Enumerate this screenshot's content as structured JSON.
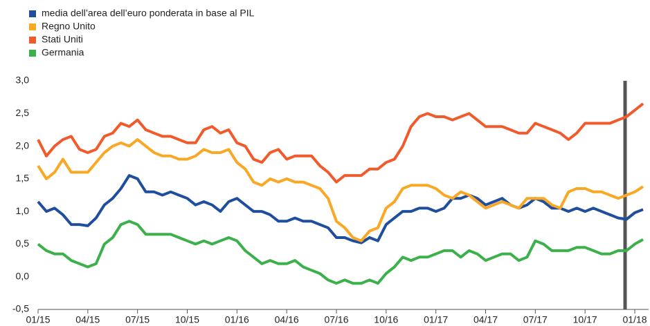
{
  "chart_data": {
    "type": "line",
    "categories": [
      "01/15",
      null,
      null,
      null,
      null,
      null,
      "04/15",
      null,
      null,
      null,
      null,
      null,
      "07/15",
      null,
      null,
      null,
      null,
      null,
      "10/15",
      null,
      null,
      null,
      null,
      null,
      "01/16",
      null,
      null,
      null,
      null,
      null,
      "04/16",
      null,
      null,
      null,
      null,
      null,
      "07/16",
      null,
      null,
      null,
      null,
      null,
      "10/16",
      null,
      null,
      null,
      null,
      null,
      "01/17",
      null,
      null,
      null,
      null,
      null,
      "04/17",
      null,
      null,
      null,
      null,
      null,
      "07/17",
      null,
      null,
      null,
      null,
      null,
      "10/17",
      null,
      null,
      null,
      null,
      null,
      "01/18",
      null
    ],
    "series": [
      {
        "name": "media dell’area dell’euro ponderata in base al PIL",
        "color": "#1f4e9c",
        "values": [
          1.15,
          1.0,
          1.05,
          0.95,
          0.8,
          0.8,
          0.78,
          0.9,
          1.1,
          1.2,
          1.35,
          1.55,
          1.5,
          1.3,
          1.3,
          1.25,
          1.3,
          1.25,
          1.2,
          1.1,
          1.15,
          1.1,
          1.0,
          1.15,
          1.2,
          1.1,
          1.0,
          1.0,
          0.95,
          0.85,
          0.85,
          0.9,
          0.85,
          0.85,
          0.8,
          0.75,
          0.6,
          0.6,
          0.55,
          0.52,
          0.6,
          0.55,
          0.8,
          0.9,
          1.0,
          1.0,
          1.05,
          1.05,
          1.0,
          1.05,
          1.2,
          1.2,
          1.25,
          1.2,
          1.1,
          1.15,
          1.2,
          1.1,
          1.05,
          1.1,
          1.2,
          1.15,
          1.05,
          1.05,
          1.0,
          1.05,
          1.0,
          1.05,
          1.0,
          0.95,
          0.9,
          0.88,
          0.98,
          1.03
        ]
      },
      {
        "name": "Regno Unito",
        "color": "#f9a825",
        "values": [
          1.7,
          1.5,
          1.6,
          1.8,
          1.6,
          1.6,
          1.6,
          1.75,
          1.9,
          2.0,
          2.05,
          2.0,
          2.1,
          2.0,
          1.9,
          1.85,
          1.85,
          1.8,
          1.8,
          1.85,
          1.95,
          1.9,
          1.9,
          1.95,
          1.75,
          1.65,
          1.45,
          1.4,
          1.5,
          1.45,
          1.5,
          1.45,
          1.45,
          1.4,
          1.35,
          1.2,
          0.85,
          0.75,
          0.6,
          0.55,
          0.7,
          0.75,
          1.05,
          1.15,
          1.35,
          1.4,
          1.4,
          1.4,
          1.35,
          1.25,
          1.2,
          1.3,
          1.25,
          1.15,
          1.05,
          1.1,
          1.15,
          1.1,
          1.05,
          1.2,
          1.2,
          1.2,
          1.1,
          1.05,
          1.3,
          1.35,
          1.35,
          1.3,
          1.3,
          1.25,
          1.2,
          1.25,
          1.3,
          1.38
        ]
      },
      {
        "name": "Stati Uniti",
        "color": "#f15a2b",
        "values": [
          2.1,
          1.85,
          2.0,
          2.1,
          2.15,
          1.95,
          1.9,
          1.95,
          2.15,
          2.2,
          2.35,
          2.3,
          2.4,
          2.25,
          2.2,
          2.15,
          2.15,
          2.1,
          2.05,
          2.05,
          2.25,
          2.3,
          2.2,
          2.25,
          2.05,
          2.0,
          1.8,
          1.75,
          1.9,
          1.95,
          1.8,
          1.85,
          1.85,
          1.85,
          1.7,
          1.6,
          1.45,
          1.55,
          1.55,
          1.55,
          1.65,
          1.65,
          1.75,
          1.8,
          2.0,
          2.3,
          2.45,
          2.5,
          2.45,
          2.45,
          2.4,
          2.45,
          2.5,
          2.4,
          2.3,
          2.3,
          2.3,
          2.25,
          2.2,
          2.2,
          2.35,
          2.3,
          2.25,
          2.2,
          2.1,
          2.2,
          2.35,
          2.35,
          2.35,
          2.35,
          2.4,
          2.45,
          2.55,
          2.65
        ]
      },
      {
        "name": "Germania",
        "color": "#3cb04a",
        "values": [
          0.5,
          0.4,
          0.35,
          0.35,
          0.25,
          0.2,
          0.15,
          0.2,
          0.5,
          0.6,
          0.8,
          0.85,
          0.8,
          0.65,
          0.65,
          0.65,
          0.65,
          0.6,
          0.55,
          0.5,
          0.55,
          0.5,
          0.55,
          0.6,
          0.55,
          0.4,
          0.3,
          0.2,
          0.25,
          0.2,
          0.2,
          0.25,
          0.15,
          0.1,
          0.05,
          -0.05,
          -0.1,
          -0.05,
          -0.1,
          -0.1,
          -0.05,
          -0.1,
          0.05,
          0.15,
          0.3,
          0.25,
          0.3,
          0.3,
          0.35,
          0.4,
          0.4,
          0.3,
          0.4,
          0.35,
          0.25,
          0.3,
          0.35,
          0.35,
          0.25,
          0.3,
          0.55,
          0.5,
          0.4,
          0.4,
          0.4,
          0.45,
          0.45,
          0.4,
          0.35,
          0.35,
          0.4,
          0.4,
          0.5,
          0.57
        ]
      }
    ],
    "ylim": [
      -0.5,
      3.0
    ],
    "yticks": [
      {
        "value": -0.5,
        "label": "-0,5"
      },
      {
        "value": 0.0,
        "label": "0,0"
      },
      {
        "value": 0.5,
        "label": "0,5"
      },
      {
        "value": 1.0,
        "label": "1,0"
      },
      {
        "value": 1.5,
        "label": "1,5"
      },
      {
        "value": 2.0,
        "label": "2,0"
      },
      {
        "value": 2.5,
        "label": "2,5"
      },
      {
        "value": 3.0,
        "label": "3,0"
      }
    ],
    "legend": "top-left"
  }
}
